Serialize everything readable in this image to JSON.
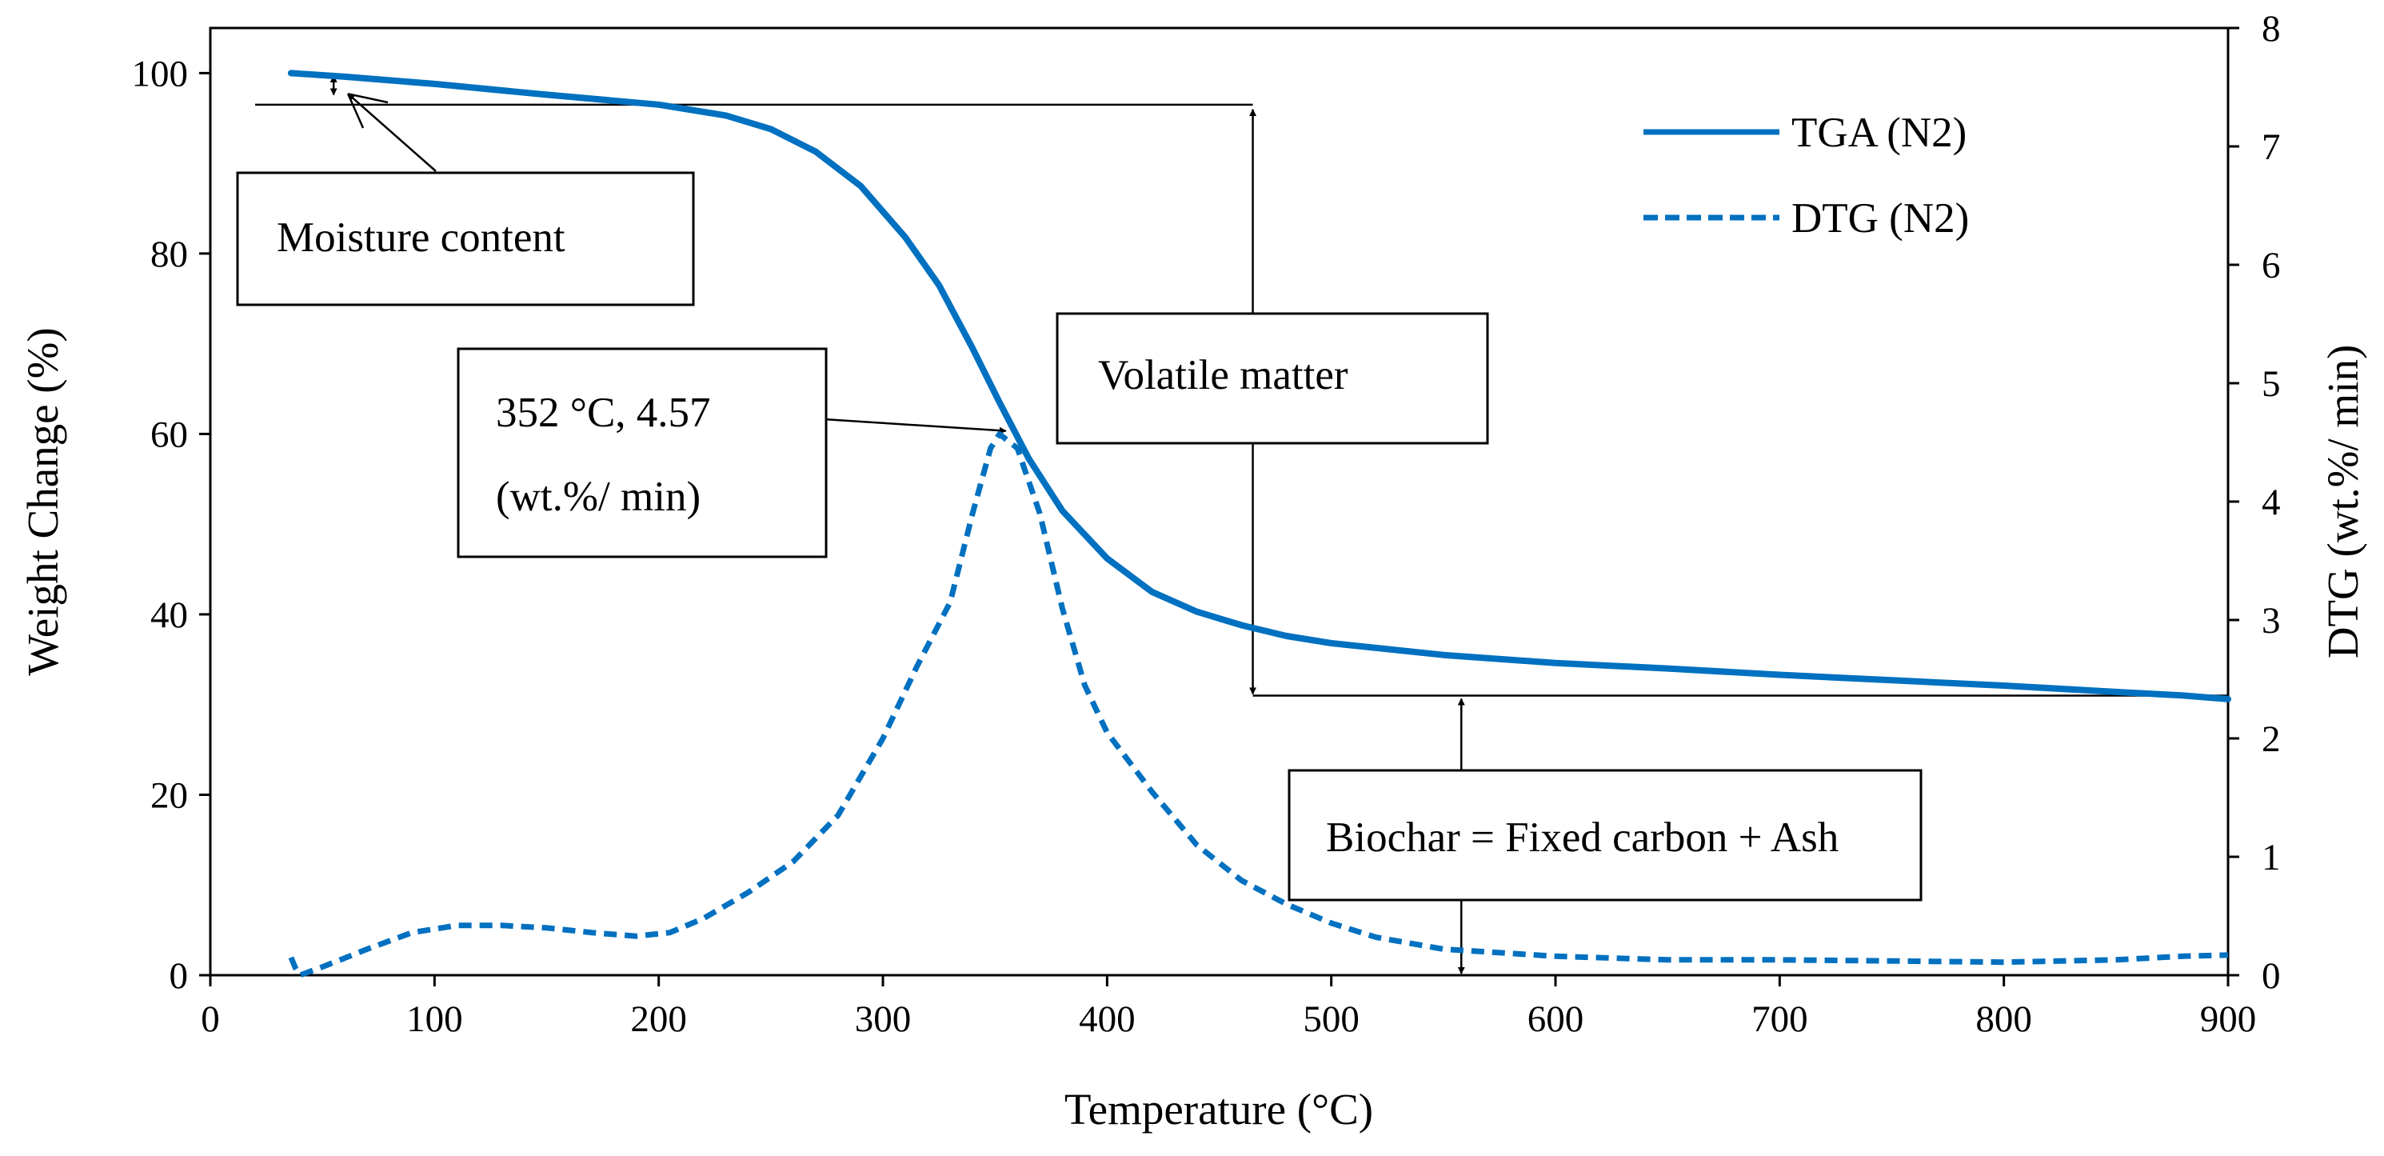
{
  "chart_data": {
    "type": "line",
    "x": {
      "label": "Temperature (°C)",
      "range": [
        0,
        900
      ],
      "ticks": [
        0,
        100,
        200,
        300,
        400,
        500,
        600,
        700,
        800,
        900
      ]
    },
    "y_left": {
      "label": "Weight Change (%)",
      "range": [
        0,
        105
      ],
      "ticks": [
        0,
        20,
        40,
        60,
        80,
        100
      ]
    },
    "y_right": {
      "label": "DTG (wt.%/ min)",
      "range": [
        0,
        8
      ],
      "ticks": [
        0,
        1,
        2,
        3,
        4,
        5,
        6,
        7,
        8
      ]
    },
    "series": [
      {
        "name": "TGA (N2)",
        "axis": "left",
        "style": "solid",
        "color": "#0070C0",
        "points": [
          [
            36,
            100
          ],
          [
            60,
            99.6
          ],
          [
            100,
            98.8
          ],
          [
            150,
            97.6
          ],
          [
            200,
            96.5
          ],
          [
            230,
            95.3
          ],
          [
            250,
            93.8
          ],
          [
            270,
            91.3
          ],
          [
            290,
            87.5
          ],
          [
            310,
            81.8
          ],
          [
            325,
            76.5
          ],
          [
            340,
            69.5
          ],
          [
            352,
            63.5
          ],
          [
            365,
            57.3
          ],
          [
            380,
            51.5
          ],
          [
            400,
            46.2
          ],
          [
            420,
            42.5
          ],
          [
            440,
            40.3
          ],
          [
            460,
            38.8
          ],
          [
            480,
            37.6
          ],
          [
            500,
            36.8
          ],
          [
            550,
            35.5
          ],
          [
            600,
            34.6
          ],
          [
            650,
            34
          ],
          [
            700,
            33.3
          ],
          [
            750,
            32.7
          ],
          [
            800,
            32.1
          ],
          [
            850,
            31.4
          ],
          [
            880,
            31
          ],
          [
            900,
            30.6
          ]
        ]
      },
      {
        "name": "DTG (N2)",
        "axis": "right",
        "style": "dashed",
        "color": "#0070C0",
        "points": [
          [
            36,
            0.15
          ],
          [
            38,
            0.06
          ],
          [
            40,
            0.0
          ],
          [
            50,
            0.07
          ],
          [
            70,
            0.22
          ],
          [
            90,
            0.36
          ],
          [
            110,
            0.42
          ],
          [
            130,
            0.42
          ],
          [
            150,
            0.4
          ],
          [
            170,
            0.36
          ],
          [
            190,
            0.33
          ],
          [
            205,
            0.36
          ],
          [
            220,
            0.48
          ],
          [
            240,
            0.7
          ],
          [
            260,
            0.96
          ],
          [
            280,
            1.35
          ],
          [
            300,
            2.0
          ],
          [
            315,
            2.6
          ],
          [
            330,
            3.15
          ],
          [
            340,
            3.9
          ],
          [
            348,
            4.45
          ],
          [
            352,
            4.57
          ],
          [
            360,
            4.45
          ],
          [
            370,
            3.9
          ],
          [
            380,
            3.1
          ],
          [
            390,
            2.45
          ],
          [
            400,
            2.05
          ],
          [
            420,
            1.55
          ],
          [
            440,
            1.1
          ],
          [
            460,
            0.8
          ],
          [
            480,
            0.6
          ],
          [
            500,
            0.44
          ],
          [
            520,
            0.32
          ],
          [
            550,
            0.22
          ],
          [
            600,
            0.16
          ],
          [
            650,
            0.13
          ],
          [
            700,
            0.13
          ],
          [
            750,
            0.12
          ],
          [
            800,
            0.11
          ],
          [
            850,
            0.13
          ],
          [
            880,
            0.16
          ],
          [
            900,
            0.17
          ]
        ]
      }
    ],
    "annotations": {
      "moisture": "Moisture content",
      "peak_line1": "352  °C,  4.57",
      "peak_line2": "(wt.%/ min)",
      "volatile": "Volatile matter",
      "biochar": "Biochar = Fixed carbon + Ash"
    },
    "legend": {
      "position": "top-right",
      "entries": [
        "TGA (N2)",
        "DTG (N2)"
      ]
    },
    "levels": {
      "moisture_line_y": 96.5,
      "volatile_bottom_y": 31,
      "volatile_arrow_x": 465,
      "biochar_arrow_x": 558,
      "peak_x": 352,
      "peak_dtg": 4.57
    }
  }
}
